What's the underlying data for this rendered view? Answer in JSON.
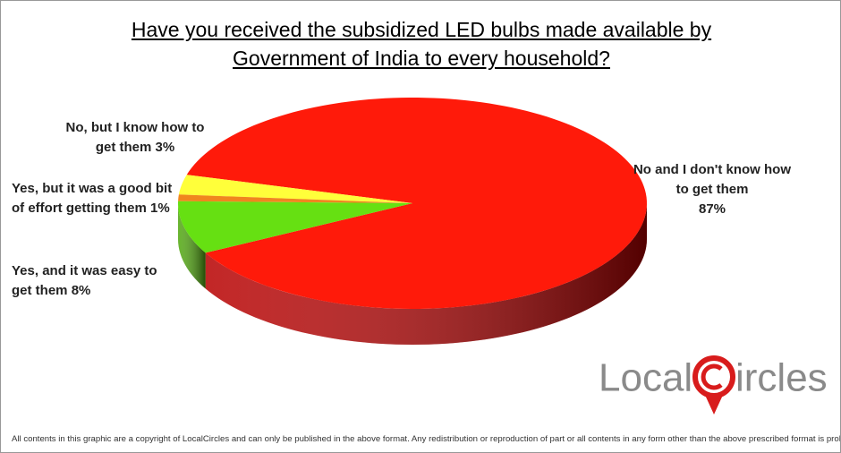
{
  "chart_data": {
    "type": "pie",
    "title": "Have you received the subsidized LED bulbs made available by Government of India to every household?",
    "categories": [
      "No and I don't know how to get them",
      "No, but I know how to get them",
      "Yes, but it was a good bit of effort getting them",
      "Yes, and it was easy to get them"
    ],
    "values": [
      87,
      3,
      1,
      8
    ],
    "value_labels": [
      "87%",
      "3%",
      "1%",
      "8%"
    ],
    "colors": [
      "#ff1a0a",
      "#ffff3a",
      "#f0861e",
      "#66e012"
    ],
    "side_colors": [
      "#b80000",
      "#c8c800",
      "#b06010",
      "#4fa80c"
    ]
  },
  "logo": [
    "Local",
    "ircles"
  ],
  "footer": "All contents in this graphic are a copyright of LocalCircles and can only be published in the above format. Any redistribution or reproduction of part or all contents in any form other than the above prescribed format is prohibited."
}
